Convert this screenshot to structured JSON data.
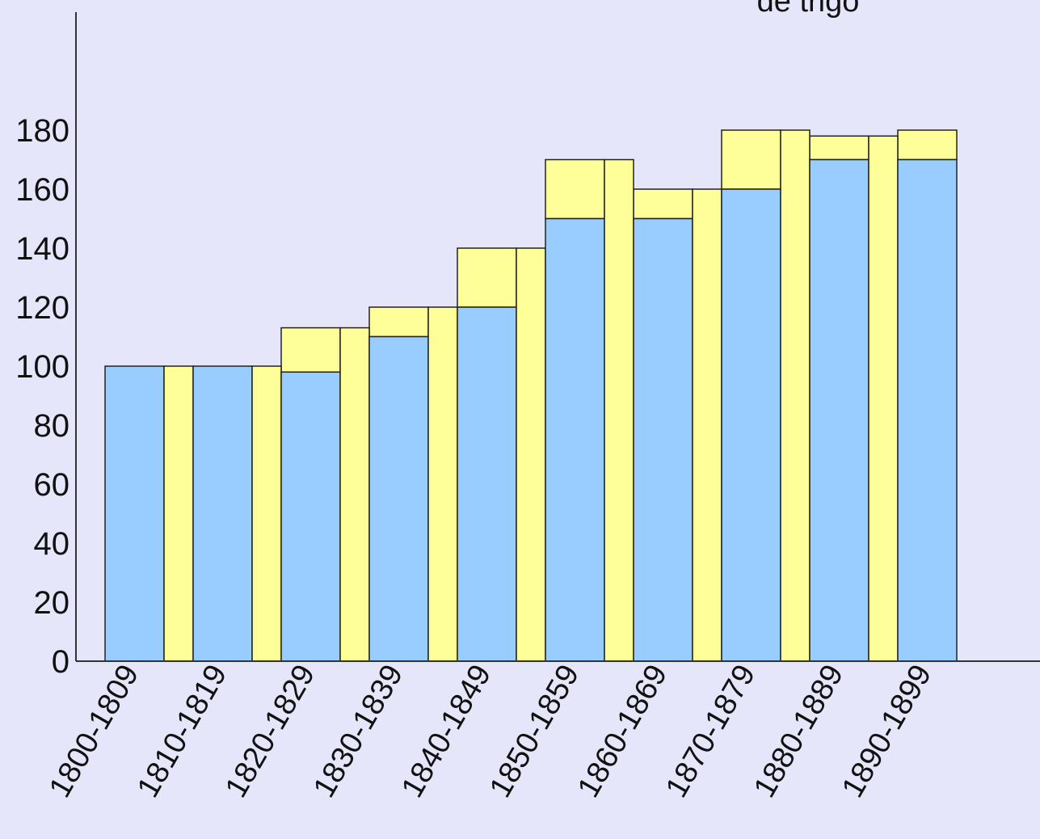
{
  "legend": {
    "partial_label": "de trigo"
  },
  "chart_data": {
    "type": "bar",
    "title": "",
    "xlabel": "",
    "ylabel": "",
    "ylim": [
      0,
      200
    ],
    "yticks": [
      0,
      20,
      40,
      60,
      80,
      100,
      120,
      140,
      160,
      180
    ],
    "categories": [
      "1800-1809",
      "1810-1819",
      "1820-1829",
      "1830-1839",
      "1840-1849",
      "1850-1859",
      "1860-1869",
      "1870-1879",
      "1880-1889",
      "1890-1899"
    ],
    "colors": {
      "blue": "#99ccff",
      "yellow": "#ffff99",
      "stroke": "#222222",
      "background": "#e6e6fa"
    },
    "series": [
      {
        "color": "blue",
        "values": [
          100,
          100,
          98,
          110,
          120,
          150,
          150,
          160,
          170,
          170
        ]
      },
      {
        "color": "yellow",
        "values": [
          100,
          100,
          113,
          120,
          140,
          170,
          160,
          180,
          178,
          180
        ]
      }
    ],
    "annotations": "Yellow bands connect adjacent bars at their yellow top values"
  }
}
